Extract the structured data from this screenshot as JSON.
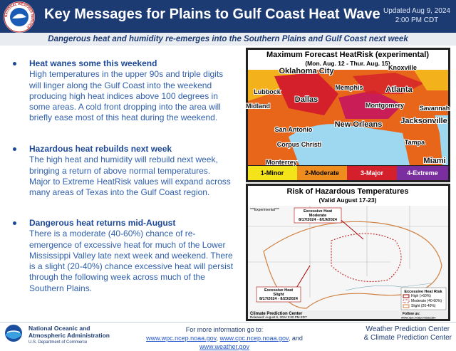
{
  "header": {
    "logo_text": "NATIONAL WEATHER SERVICE",
    "title": "Key Messages for Plains to Gulf Coast Heat Wave",
    "updated_line1": "Updated Aug 9, 2024",
    "updated_line2": "2:00 PM CDT"
  },
  "subtitle": "Dangerous heat and humidity re-emerges into the Southern Plains and Gulf Coast next week",
  "messages": [
    {
      "heading": "Heat wanes some this weekend",
      "body": "High temperatures in the upper 90s and triple digits will linger along the Gulf Coast into the weekend producing high heat indices above 100 degrees in some areas. A cold front dropping into the area will briefly ease most of this heat during the weekend."
    },
    {
      "heading": "Hazardous heat rebuilds next week",
      "body": "The high heat and humidity will rebuild next week, bringing a return of above normal temperatures. Major to Extreme HeatRisk values will expand across many areas of Texas into the Gulf Coast region."
    },
    {
      "heading": "Dangerous heat returns mid-August",
      "body": "There is a moderate (40-60%) chance of re-emergence of excessive heat for much of the Lower Mississippi Valley late next week and weekend. There is a slight (20-40%) chance excessive heat will persist through the following week across much of the Southern Plains."
    }
  ],
  "map1": {
    "title": "Maximum Forecast HeatRisk (experimental)",
    "subtitle": "(Mon. Aug. 12 - Thur. Aug. 15)",
    "cities": [
      "Oklahoma City",
      "Knoxville",
      "Memphis",
      "Lubbock",
      "Atlanta",
      "Dallas",
      "Midland",
      "Montgomery",
      "Savannah",
      "New Orleans",
      "Jacksonville",
      "San Antonio",
      "Corpus Christi",
      "Tampa",
      "Monterrey",
      "Miami"
    ],
    "legend": [
      "1-Minor",
      "2-Moderate",
      "3-Major",
      "4-Extreme"
    ]
  },
  "map2": {
    "title": "Risk of Hazardous Temperatures",
    "subtitle": "(Valid August 17-23)",
    "experimental": "***Experimental***",
    "moderate": [
      "Excessive Heat",
      "Moderate",
      "8/17/2024 - 8/19/2024"
    ],
    "slight": [
      "Excessive Heat",
      "Slight",
      "8/17/2024 - 8/23/2024"
    ],
    "legend_title": "Excessive Heat Risk",
    "legend": [
      "High (>60%)",
      "Moderate (40-60%)",
      "Slight (20-40%)"
    ],
    "credit": "Climate Prediction Center",
    "released": "Released: August 9, 2024 3:00 PM EDT",
    "url": "www.cpc.ncep.noaa.gov",
    "follow": "Follow us:"
  },
  "footer": {
    "agency": [
      "National Oceanic and",
      "Atmospheric Administration"
    ],
    "department": "U.S. Department of Commerce",
    "more_info": "For more information go to:",
    "links": [
      "www.wpc.ncep.noaa.gov",
      "www.cpc.ncep.noaa.gov",
      "www.weather.gov"
    ],
    "joiners": [
      ", ",
      ", and "
    ],
    "centers": [
      "Weather Prediction Center",
      "& Climate Prediction Center"
    ]
  }
}
